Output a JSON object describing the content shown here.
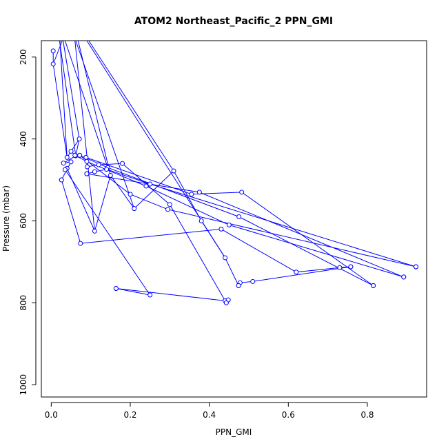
{
  "chart_data": {
    "type": "line",
    "title": "ATOM2 Northeast_Pacific_2 PPN_GMI",
    "xlabel": "PPN_GMI",
    "ylabel": "Pressure (mbar)",
    "xlim": [
      -0.025,
      0.95
    ],
    "ylim": [
      1030,
      160
    ],
    "y_reversed": true,
    "x_ticks": [
      0.0,
      0.2,
      0.4,
      0.6,
      0.8
    ],
    "x_tick_labels": [
      "0.0",
      "0.2",
      "0.4",
      "0.6",
      "0.8"
    ],
    "y_ticks": [
      200,
      400,
      600,
      800,
      1000
    ],
    "y_tick_labels": [
      "200",
      "400",
      "600",
      "800",
      "1000"
    ],
    "grid": false,
    "line_color": "#0000ff",
    "marker": "open-circle",
    "series": [
      {
        "x": [
          0.005,
          0.005,
          0.04,
          0.071,
          0.062,
          0.031,
          0.05,
          0.026
        ],
        "y": [
          185,
          217,
          445,
          400,
          441,
          459,
          456,
          500
        ]
      },
      {
        "x": [
          0.026,
          0.074,
          0.43,
          0.62,
          0.73,
          0.758
        ],
        "y": [
          500,
          655,
          620,
          725,
          714,
          712
        ]
      },
      {
        "x": [
          0.758,
          0.51,
          0.478,
          0.474
        ],
        "y": [
          712,
          748,
          751,
          758
        ]
      },
      {
        "x": [
          0.474,
          0.44,
          0.38,
          0.31,
          0.21,
          0.15,
          0.11,
          0.04,
          0.035
        ],
        "y": [
          758,
          690,
          600,
          478,
          570,
          489,
          625,
          472,
          475
        ]
      },
      {
        "x": [
          0.035,
          0.25,
          0.164
        ],
        "y": [
          475,
          781,
          765
        ]
      },
      {
        "x": [
          0.164,
          0.44,
          0.448,
          0.443
        ],
        "y": [
          765,
          795,
          793,
          800
        ]
      },
      {
        "x": [
          0.443,
          0.3,
          0.18,
          0.12,
          0.091,
          0.088
        ],
        "y": [
          800,
          560,
          460,
          463,
          468,
          445
        ]
      },
      {
        "x": [
          0.088,
          0.355,
          0.482,
          0.815
        ],
        "y": [
          445,
          535,
          530,
          758
        ]
      },
      {
        "x": [
          0.815,
          0.475,
          0.143,
          0.072
        ],
        "y": [
          758,
          590,
          470,
          440
        ]
      },
      {
        "x": [
          0.072,
          0.2,
          0.295,
          0.923
        ],
        "y": [
          440,
          535,
          572,
          712
        ]
      },
      {
        "x": [
          0.923,
          0.25,
          0.14,
          0.11,
          0.09
        ],
        "y": [
          712,
          510,
          474,
          480,
          485
        ]
      },
      {
        "x": [
          0.09,
          0.375,
          0.892
        ],
        "y": [
          485,
          530,
          737
        ]
      },
      {
        "x": [
          0.892,
          0.45,
          0.24,
          0.09,
          0.06,
          0.05
        ],
        "y": [
          737,
          610,
          515,
          455,
          440,
          430
        ]
      }
    ],
    "curtain_lines_to_top": [
      {
        "from": [
          0.04,
          445
        ],
        "to": [
          0.022,
          160
        ]
      },
      {
        "from": [
          0.071,
          400
        ],
        "to": [
          0.03,
          160
        ]
      },
      {
        "from": [
          0.062,
          441
        ],
        "to": [
          0.021,
          160
        ]
      },
      {
        "from": [
          0.11,
          625
        ],
        "to": [
          0.06,
          160
        ]
      },
      {
        "from": [
          0.15,
          489
        ],
        "to": [
          0.068,
          160
        ]
      },
      {
        "from": [
          0.21,
          570
        ],
        "to": [
          0.062,
          160
        ]
      },
      {
        "from": [
          0.31,
          478
        ],
        "to": [
          0.095,
          160
        ]
      },
      {
        "from": [
          0.44,
          690
        ],
        "to": [
          0.09,
          160
        ]
      },
      {
        "from": [
          0.143,
          470
        ],
        "to": [
          0.035,
          160
        ]
      },
      {
        "from": [
          0.005,
          217
        ],
        "to": [
          0.028,
          160
        ]
      }
    ]
  }
}
